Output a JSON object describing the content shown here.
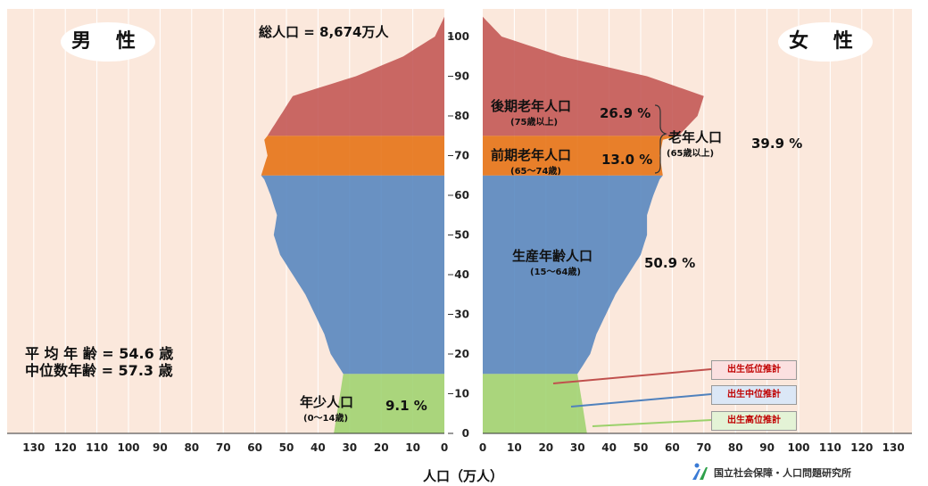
{
  "labels": {
    "male": "男 性",
    "female": "女 性",
    "total": "総人口 = 8,674万人",
    "xlabel": "人口（万人）",
    "old_late": "後期老年人口",
    "old_late_range": "(75歳以上)",
    "old_late_pct": "26.9 %",
    "old_early": "前期老年人口",
    "old_early_range": "(65～74歳)",
    "old_early_pct": "13.0 %",
    "elderly": "老年人口",
    "elderly_range": "(65歳以上)",
    "elderly_pct": "39.9 %",
    "working": "生産年齢人口",
    "working_range": "(15～64歳)",
    "working_pct": "50.9 %",
    "young": "年少人口",
    "young_range": "(0～14歳)",
    "young_pct": "9.1 %",
    "mean_age": "平 均 年 齢 = 54.6 歳",
    "median_age": "中位数年齢 = 57.3 歳",
    "legend_low": "出生低位推計",
    "legend_mid": "出生中位推計",
    "legend_high": "出生高位推計",
    "source": "国立社会保障・人口問題研究所"
  },
  "colors": {
    "background": "#fbe8dc",
    "old_late": "#c0504d",
    "old_early": "#e46c0a",
    "working": "#4f81bd",
    "young": "#9bd16b",
    "projection_low": "#c0504d",
    "projection_mid": "#4f81bd",
    "projection_high": "#9bd16b"
  },
  "chart_data": {
    "type": "population_pyramid",
    "x_axis_ticks_left": [
      130,
      120,
      110,
      100,
      90,
      80,
      70,
      60,
      50,
      40,
      30,
      20,
      10,
      0
    ],
    "x_axis_ticks_right": [
      0,
      10,
      20,
      30,
      40,
      50,
      60,
      70,
      80,
      90,
      100,
      110,
      120,
      130
    ],
    "y_axis_ticks": [
      0,
      10,
      20,
      30,
      40,
      50,
      60,
      70,
      80,
      90,
      100
    ],
    "x_range": [
      0,
      130
    ],
    "y_range": [
      0,
      105
    ],
    "male": [
      {
        "age": 0,
        "value": 35
      },
      {
        "age": 5,
        "value": 34
      },
      {
        "age": 10,
        "value": 33
      },
      {
        "age": 15,
        "value": 32
      },
      {
        "age": 20,
        "value": 36
      },
      {
        "age": 25,
        "value": 38
      },
      {
        "age": 30,
        "value": 41
      },
      {
        "age": 35,
        "value": 44
      },
      {
        "age": 40,
        "value": 48
      },
      {
        "age": 45,
        "value": 52
      },
      {
        "age": 50,
        "value": 54
      },
      {
        "age": 55,
        "value": 53
      },
      {
        "age": 60,
        "value": 55
      },
      {
        "age": 64,
        "value": 57
      },
      {
        "age": 65,
        "value": 58
      },
      {
        "age": 70,
        "value": 56
      },
      {
        "age": 74,
        "value": 57
      },
      {
        "age": 75,
        "value": 56
      },
      {
        "age": 80,
        "value": 52
      },
      {
        "age": 85,
        "value": 48
      },
      {
        "age": 90,
        "value": 28
      },
      {
        "age": 95,
        "value": 13
      },
      {
        "age": 100,
        "value": 3
      },
      {
        "age": 105,
        "value": 0
      }
    ],
    "female": [
      {
        "age": 0,
        "value": 33
      },
      {
        "age": 5,
        "value": 32
      },
      {
        "age": 10,
        "value": 31
      },
      {
        "age": 15,
        "value": 30
      },
      {
        "age": 20,
        "value": 34
      },
      {
        "age": 25,
        "value": 36
      },
      {
        "age": 30,
        "value": 39
      },
      {
        "age": 35,
        "value": 42
      },
      {
        "age": 40,
        "value": 46
      },
      {
        "age": 45,
        "value": 50
      },
      {
        "age": 50,
        "value": 52
      },
      {
        "age": 55,
        "value": 52
      },
      {
        "age": 60,
        "value": 54
      },
      {
        "age": 64,
        "value": 56
      },
      {
        "age": 65,
        "value": 57
      },
      {
        "age": 70,
        "value": 56
      },
      {
        "age": 74,
        "value": 57
      },
      {
        "age": 75,
        "value": 62
      },
      {
        "age": 80,
        "value": 68
      },
      {
        "age": 85,
        "value": 70
      },
      {
        "age": 90,
        "value": 52
      },
      {
        "age": 95,
        "value": 25
      },
      {
        "age": 100,
        "value": 6
      },
      {
        "age": 105,
        "value": 0
      }
    ]
  }
}
